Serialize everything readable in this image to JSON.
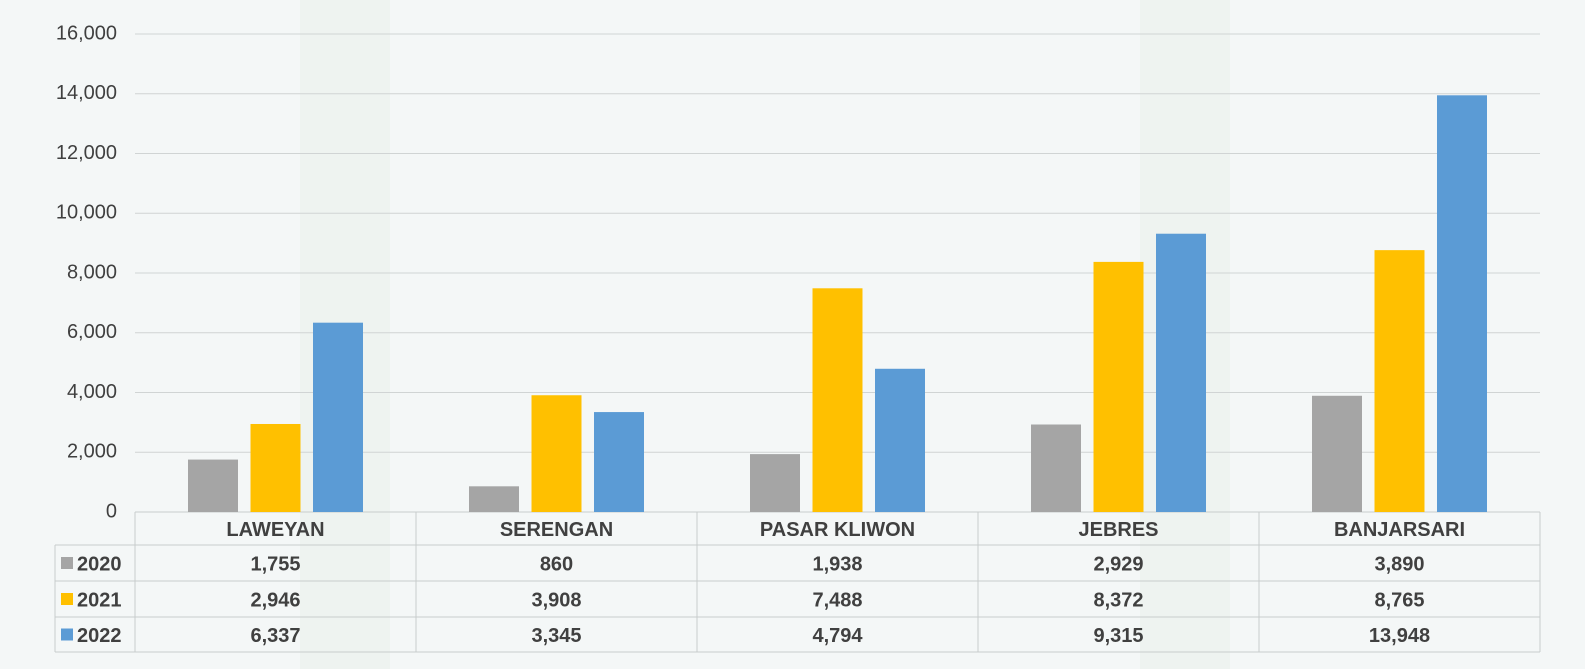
{
  "chart_data": {
    "type": "bar",
    "categories": [
      "LAWEYAN",
      "SERENGAN",
      "PASAR KLIWON",
      "JEBRES",
      "BANJARSARI"
    ],
    "series": [
      {
        "name": "2020",
        "color": "#a5a5a5",
        "values": [
          1755,
          860,
          1938,
          2929,
          3890
        ],
        "value_labels": [
          "1,755",
          "860",
          "1,938",
          "2,929",
          "3,890"
        ]
      },
      {
        "name": "2021",
        "color": "#ffc000",
        "values": [
          2946,
          3908,
          7488,
          8372,
          8765
        ],
        "value_labels": [
          "2,946",
          "3,908",
          "7,488",
          "8,372",
          "8,765"
        ]
      },
      {
        "name": "2022",
        "color": "#5b9bd5",
        "values": [
          6337,
          3345,
          4794,
          9315,
          13948
        ],
        "value_labels": [
          "6,337",
          "3,345",
          "4,794",
          "9,315",
          "13,948"
        ]
      }
    ],
    "ylim": [
      0,
      16000
    ],
    "yticks": [
      0,
      {
        "value": 2000,
        "label": "2,000"
      },
      {
        "value": 4000,
        "label": "4,000"
      },
      {
        "value": 6000,
        "label": "6,000"
      },
      {
        "value": 8000,
        "label": "8,000"
      },
      {
        "value": 10000,
        "label": "10,000"
      },
      {
        "value": 12000,
        "label": "12,000"
      },
      {
        "value": 14000,
        "label": "14,000"
      },
      {
        "value": 16000,
        "label": "16,000"
      }
    ],
    "grid": true
  }
}
